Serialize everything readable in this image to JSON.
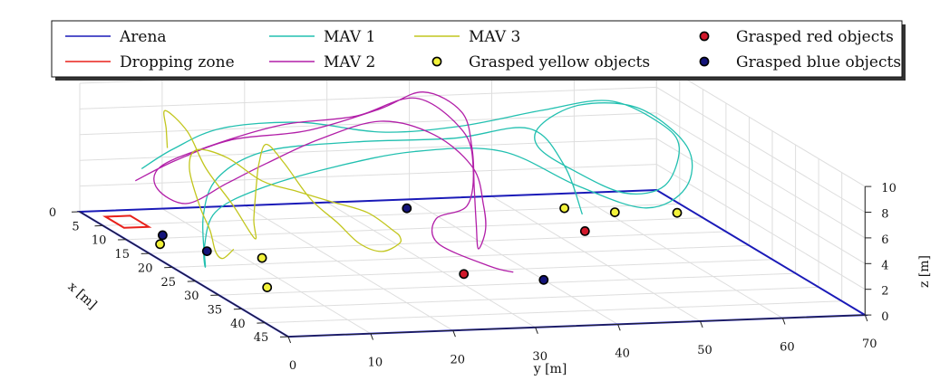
{
  "chart_data": {
    "type": "line3d",
    "title": "",
    "xlabel": "x [m]",
    "ylabel": "y [m]",
    "zlabel": "z [m]",
    "xlim": [
      0,
      45
    ],
    "ylim": [
      0,
      70
    ],
    "zlim": [
      0,
      10
    ],
    "x_ticks": [
      0,
      5,
      10,
      15,
      20,
      25,
      30,
      35,
      40,
      45
    ],
    "y_ticks": [
      0,
      10,
      20,
      30,
      40,
      50,
      60,
      70
    ],
    "z_ticks": [
      0,
      2,
      4,
      6,
      8,
      10
    ],
    "grid": true,
    "legend": {
      "position": "top",
      "entries": [
        {
          "label": "Arena",
          "kind": "line",
          "color": "#1a1ab8"
        },
        {
          "label": "Dropping zone",
          "kind": "line",
          "color": "#e8201a"
        },
        {
          "label": "MAV 1",
          "kind": "line",
          "color": "#22c0b0"
        },
        {
          "label": "MAV 2",
          "kind": "line",
          "color": "#b21fa8"
        },
        {
          "label": "MAV 3",
          "kind": "line",
          "color": "#c2c61e"
        },
        {
          "label": "Grasped yellow objects",
          "kind": "marker",
          "color": "#f2f23a"
        },
        {
          "label": "Grasped red objects",
          "kind": "marker",
          "color": "#d1182a"
        },
        {
          "label": "Grasped blue objects",
          "kind": "marker",
          "color": "#14147a"
        }
      ]
    },
    "arena": [
      [
        0,
        0,
        0
      ],
      [
        45,
        0,
        0
      ],
      [
        45,
        70,
        0
      ],
      [
        0,
        70,
        0
      ]
    ],
    "dropping_zone": [
      [
        2,
        2,
        0
      ],
      [
        6,
        2,
        0
      ],
      [
        6,
        5,
        0
      ],
      [
        2,
        5,
        0
      ]
    ],
    "series": [
      {
        "name": "MAV 1",
        "color": "#22c0b0",
        "points": [
          [
            8,
            3,
            5
          ],
          [
            6,
            8,
            6
          ],
          [
            4,
            15,
            7
          ],
          [
            3,
            25,
            7
          ],
          [
            3,
            35,
            6
          ],
          [
            2,
            45,
            6
          ],
          [
            2,
            55,
            7
          ],
          [
            4,
            62,
            8
          ],
          [
            8,
            66,
            7
          ],
          [
            12,
            66,
            6
          ],
          [
            16,
            62,
            4
          ],
          [
            18,
            56,
            4
          ],
          [
            14,
            52,
            5
          ],
          [
            10,
            50,
            6
          ],
          [
            7,
            52,
            7
          ],
          [
            5,
            58,
            8
          ],
          [
            7,
            64,
            8
          ],
          [
            12,
            67,
            6
          ],
          [
            17,
            64,
            4
          ],
          [
            19,
            58,
            3
          ],
          [
            15,
            52,
            4
          ],
          [
            11,
            45,
            6
          ],
          [
            10,
            35,
            6
          ],
          [
            10,
            25,
            5
          ],
          [
            12,
            15,
            4
          ],
          [
            15,
            8,
            3
          ],
          [
            18,
            5,
            1
          ],
          [
            20,
            4,
            0
          ],
          [
            16,
            6,
            3
          ],
          [
            12,
            10,
            5
          ],
          [
            8,
            18,
            6
          ],
          [
            6,
            30,
            6
          ],
          [
            6,
            42,
            6
          ],
          [
            8,
            50,
            7
          ],
          [
            12,
            52,
            5
          ],
          [
            16,
            52,
            2
          ]
        ]
      },
      {
        "name": "MAV 2",
        "color": "#b21fa8",
        "points": [
          [
            12,
            0,
            5
          ],
          [
            10,
            6,
            6
          ],
          [
            8,
            14,
            7
          ],
          [
            6,
            24,
            7
          ],
          [
            4,
            34,
            8
          ],
          [
            3,
            40,
            9
          ],
          [
            6,
            43,
            8
          ],
          [
            10,
            42,
            6
          ],
          [
            14,
            40,
            4
          ],
          [
            18,
            38,
            2
          ],
          [
            22,
            36,
            1
          ],
          [
            20,
            38,
            2
          ],
          [
            16,
            40,
            3
          ],
          [
            12,
            41,
            5
          ],
          [
            9,
            38,
            7
          ],
          [
            8,
            32,
            8
          ],
          [
            9,
            24,
            7
          ],
          [
            12,
            16,
            6
          ],
          [
            14,
            10,
            5
          ],
          [
            16,
            4,
            4
          ],
          [
            15,
            1,
            5
          ],
          [
            12,
            3,
            6
          ],
          [
            10,
            10,
            7
          ],
          [
            8,
            20,
            8
          ],
          [
            6,
            30,
            8
          ],
          [
            5,
            38,
            9
          ],
          [
            8,
            42,
            7
          ],
          [
            12,
            41,
            5
          ],
          [
            16,
            38,
            3
          ],
          [
            20,
            32,
            3
          ],
          [
            24,
            30,
            2
          ],
          [
            28,
            34,
            1
          ],
          [
            26,
            38,
            0
          ]
        ]
      },
      {
        "name": "MAV 3",
        "color": "#c2c61e",
        "points": [
          [
            10,
            5,
            7
          ],
          [
            8,
            6,
            8
          ],
          [
            6,
            7,
            9
          ],
          [
            9,
            8,
            8
          ],
          [
            13,
            8,
            6
          ],
          [
            17,
            9,
            4
          ],
          [
            20,
            10,
            2
          ],
          [
            18,
            11,
            3
          ],
          [
            15,
            13,
            5
          ],
          [
            12,
            15,
            6
          ],
          [
            10,
            17,
            7
          ],
          [
            12,
            18,
            6
          ],
          [
            16,
            19,
            4
          ],
          [
            20,
            20,
            3
          ],
          [
            23,
            21,
            2
          ],
          [
            26,
            22,
            2
          ],
          [
            28,
            23,
            3
          ],
          [
            30,
            22,
            4
          ],
          [
            32,
            20,
            5
          ],
          [
            30,
            18,
            6
          ],
          [
            26,
            16,
            6
          ],
          [
            22,
            14,
            6
          ],
          [
            18,
            12,
            6
          ],
          [
            14,
            10,
            7
          ],
          [
            11,
            8,
            7
          ],
          [
            13,
            6,
            6
          ],
          [
            17,
            5,
            4
          ],
          [
            21,
            4,
            3
          ],
          [
            24,
            3,
            2
          ],
          [
            22,
            5,
            1
          ],
          [
            19,
            8,
            1
          ]
        ]
      }
    ],
    "objects": [
      {
        "color": "yellow",
        "pos": [
          12,
          3,
          0
        ]
      },
      {
        "color": "yellow",
        "pos": [
          18,
          12,
          0
        ]
      },
      {
        "color": "yellow",
        "pos": [
          28,
          7,
          0
        ]
      },
      {
        "color": "yellow",
        "pos": [
          5,
          56,
          0
        ]
      },
      {
        "color": "yellow",
        "pos": [
          7,
          61,
          0
        ]
      },
      {
        "color": "yellow",
        "pos": [
          8,
          68,
          0
        ]
      },
      {
        "color": "red",
        "pos": [
          26,
          32,
          0
        ]
      },
      {
        "color": "red",
        "pos": [
          13,
          54,
          0
        ]
      },
      {
        "color": "blue",
        "pos": [
          9,
          5,
          0
        ]
      },
      {
        "color": "blue",
        "pos": [
          15,
          7,
          0
        ]
      },
      {
        "color": "blue",
        "pos": [
          3,
          38,
          0
        ]
      },
      {
        "color": "blue",
        "pos": [
          29,
          40,
          0
        ]
      }
    ]
  }
}
